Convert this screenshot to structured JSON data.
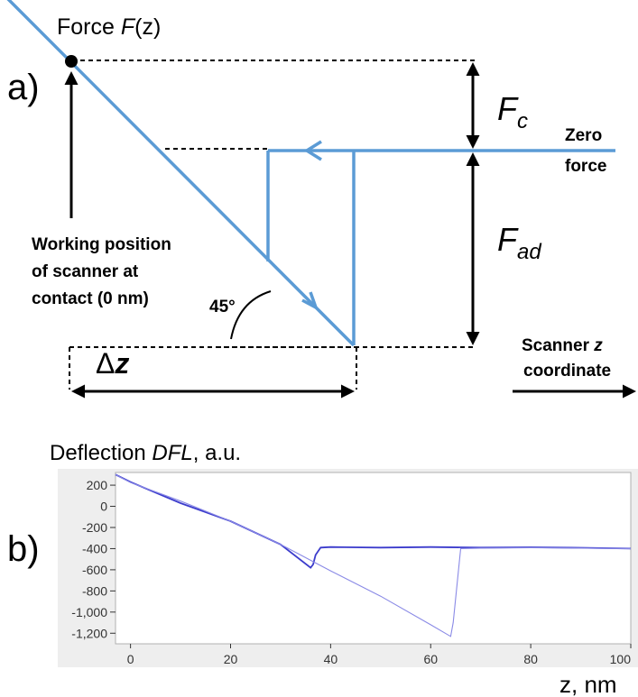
{
  "panel_a": {
    "label": "a)",
    "title_prefix": "Force ",
    "title_var": "F",
    "title_arg": "(z)",
    "fc_sym": "F",
    "fc_sub": "c",
    "fad_sym": "F",
    "fad_sub": "ad",
    "zero_force_1": "Zero",
    "zero_force_2": "force",
    "working_1": "Working position",
    "working_2": "of scanner at",
    "working_3": "contact (0 nm)",
    "angle": "45°",
    "dz_delta": "Δ",
    "dz_var": "z",
    "scanner_1a": "Scanner ",
    "scanner_1b": "z",
    "scanner_2": "coordinate"
  },
  "panel_b": {
    "label": "b)",
    "title_prefix": "Deflection ",
    "title_var": "DFL",
    "title_suffix": ", a.u.",
    "xlabel": "z, nm",
    "y_ticks": [
      "200",
      "0",
      "-200",
      "-400",
      "-600",
      "-800",
      "-1,000",
      "-1,200"
    ],
    "x_ticks": [
      "0",
      "20",
      "40",
      "60",
      "80",
      "100"
    ]
  },
  "colors": {
    "diagram_line": "#5b9bd5",
    "trace_dark": "#3c3ccc",
    "trace_light": "#8a8ae6",
    "plot_bg": "#eeeeee"
  },
  "chart_data": {
    "type": "line",
    "xlim": [
      -3,
      100
    ],
    "ylim": [
      -1300,
      320
    ],
    "series": [
      {
        "x": [
          -3,
          0,
          10,
          20,
          30,
          36,
          36.5,
          37,
          38,
          40,
          50,
          60,
          70,
          80,
          90,
          100
        ],
        "y": [
          300,
          230,
          30,
          -140,
          -360,
          -580,
          -550,
          -460,
          -390,
          -385,
          -390,
          -385,
          -390,
          -388,
          -392,
          -400
        ]
      },
      {
        "x": [
          -3,
          0,
          10,
          20,
          30,
          40,
          50,
          60,
          64,
          64.5,
          66,
          70,
          80,
          90,
          100
        ],
        "y": [
          300,
          225,
          50,
          -140,
          -360,
          -610,
          -850,
          -1120,
          -1230,
          -1100,
          -400,
          -395,
          -392,
          -395,
          -400
        ]
      }
    ]
  }
}
